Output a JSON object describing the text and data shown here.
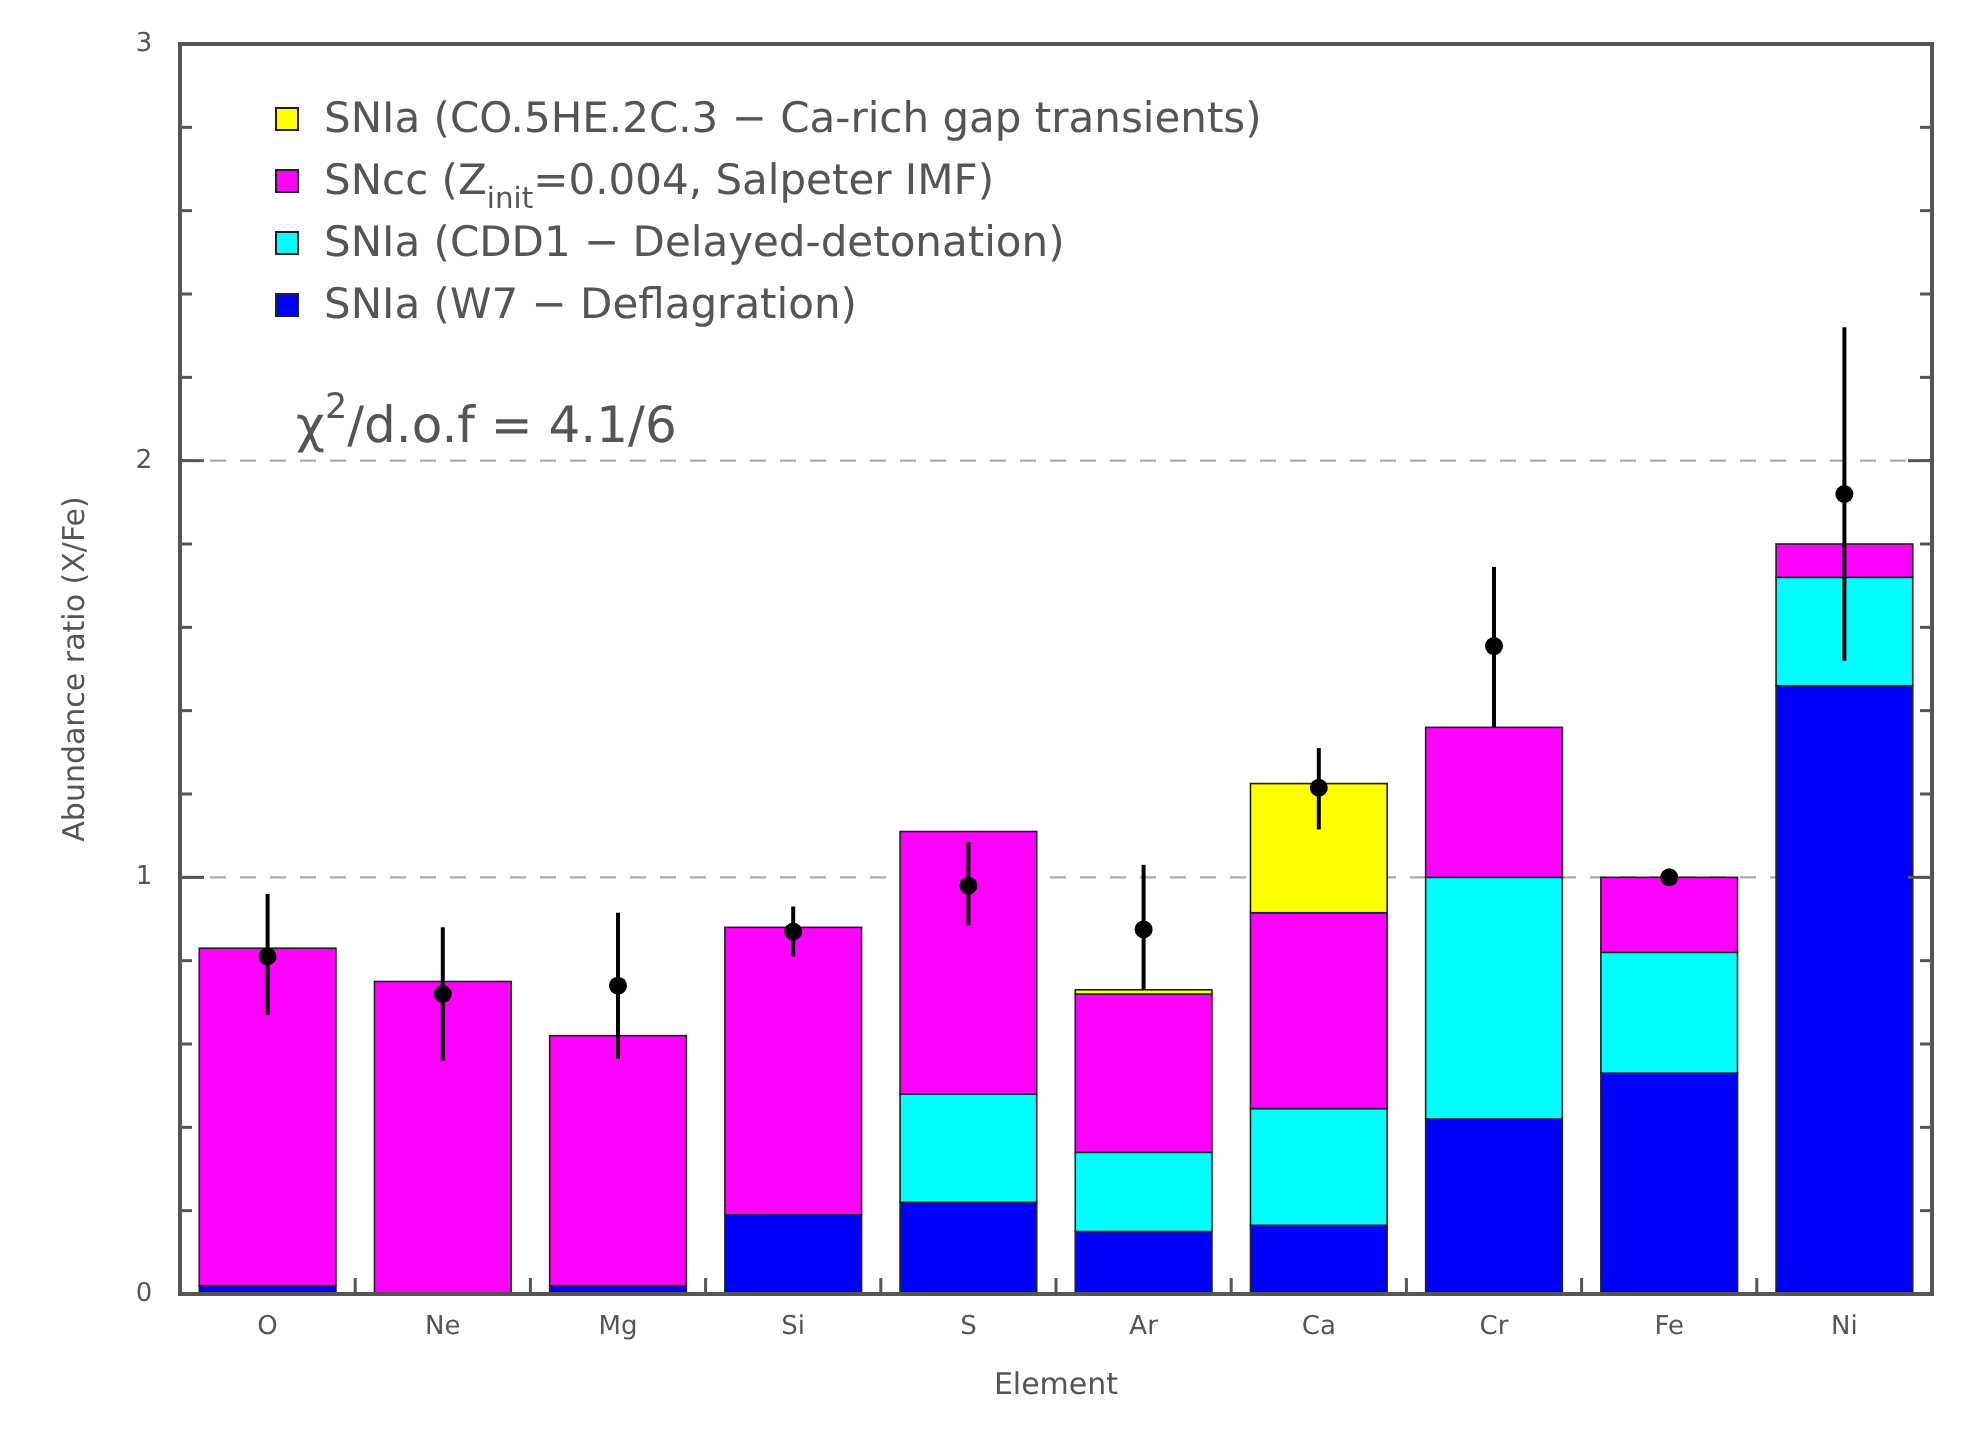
{
  "chart_data": {
    "type": "bar",
    "stacked": true,
    "xlabel": "Element",
    "ylabel": "Abundance ratio (X/Fe)",
    "categories": [
      "O",
      "Ne",
      "Mg",
      "Si",
      "S",
      "Ar",
      "Ca",
      "Cr",
      "Fe",
      "Ni"
    ],
    "series": [
      {
        "name": "SNIa (W7 − Deflagration)",
        "color": "#0000ff",
        "values": [
          0.02,
          0,
          0.02,
          0.19,
          0.22,
          0.15,
          0.165,
          0.42,
          0.53,
          1.46
        ]
      },
      {
        "name": "SNIa (CDD1 − Delayed-detonation)",
        "color": "#00ffff",
        "values": [
          0,
          0,
          0,
          0,
          0.26,
          0.19,
          0.28,
          0.58,
          0.29,
          0.26
        ]
      },
      {
        "name": "SNcc (Z$_{init}$=0.004, Salpeter IMF)",
        "color": "#ff00ff",
        "values": [
          0.81,
          0.75,
          0.6,
          0.69,
          0.63,
          0.38,
          0.47,
          0.36,
          0.18,
          0.08
        ]
      },
      {
        "name": "SNIa (CO.5HE.2C.3 − Ca-rich gap transients)",
        "color": "#ffff00",
        "values": [
          0,
          0,
          0,
          0,
          0,
          0.01,
          0.31,
          0,
          0,
          0
        ]
      },
      {
        "type": "scatter",
        "color": "#000000",
        "x": [
          "O",
          "Ne",
          "Mg",
          "Si",
          "S",
          "Ar",
          "Ca",
          "Cr",
          "Fe",
          "Ni"
        ],
        "values": [
          0.81,
          0.72,
          0.74,
          0.87,
          0.98,
          0.875,
          1.215,
          1.555,
          1.0,
          1.92
        ],
        "errors": [
          [
            0.67,
            0.96
          ],
          [
            0.56,
            0.88
          ],
          [
            0.565,
            0.915
          ],
          [
            0.81,
            0.93
          ],
          [
            0.885,
            1.085
          ],
          [
            0.73,
            1.03
          ],
          [
            1.115,
            1.31
          ],
          [
            1.36,
            1.745
          ],
          [
            0.99,
            1.01
          ],
          [
            1.52,
            2.32
          ]
        ]
      }
    ],
    "ylim": [
      0,
      3
    ],
    "yticks": [
      0,
      {
        "value": 0.2,
        "label": null
      },
      {
        "value": 0.4,
        "label": null
      },
      {
        "value": 0.6,
        "label": null
      },
      {
        "value": 0.8,
        "label": null
      },
      1,
      {
        "value": 1.2,
        "label": null
      },
      {
        "value": 1.4,
        "label": null
      },
      {
        "value": 1.6,
        "label": null
      },
      {
        "value": 1.8,
        "label": null
      },
      2,
      {
        "value": 2.2,
        "label": null
      },
      {
        "value": 2.4,
        "label": null
      },
      {
        "value": 2.6,
        "label": null
      },
      {
        "value": 2.8,
        "label": null
      },
      3
    ],
    "grid": "y",
    "legend": "top left",
    "marker": "circle",
    "annotations": [
      "χ$^{2}$/d.o.f = 4.1/6"
    ]
  }
}
